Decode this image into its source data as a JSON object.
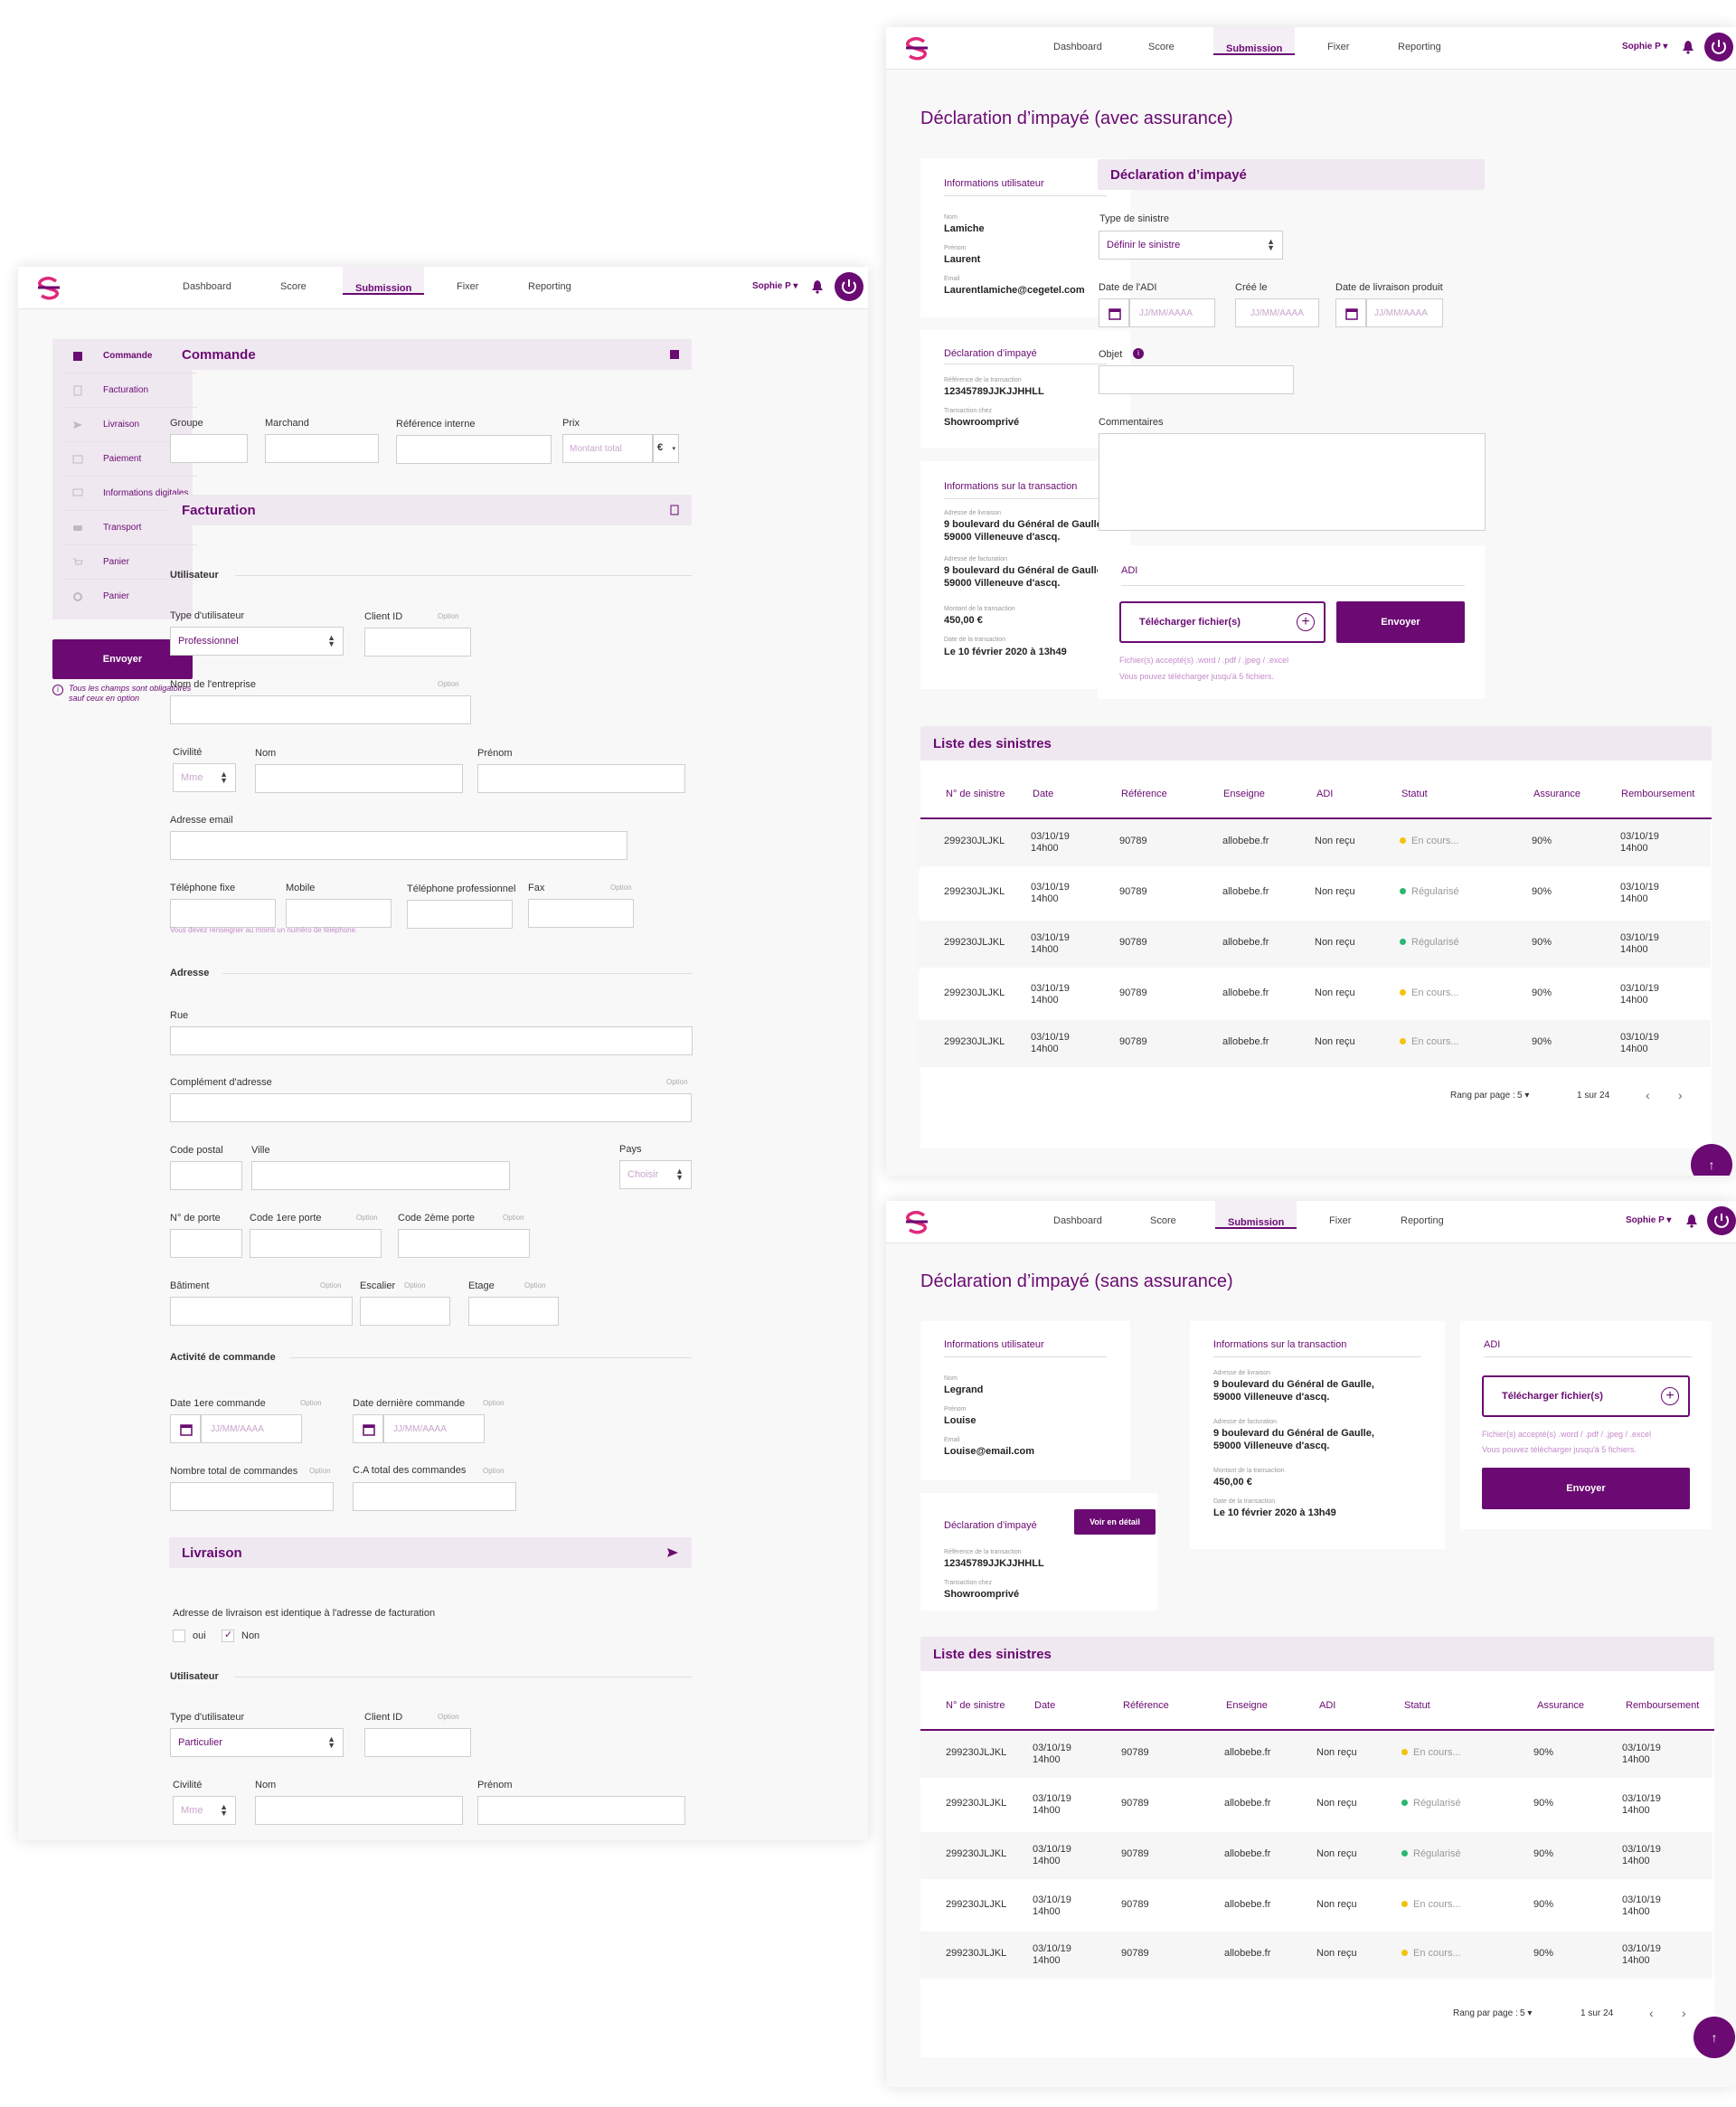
{
  "nav": {
    "links": [
      "Dashboard",
      "Score",
      "Submission",
      "Fixer",
      "Reporting"
    ],
    "user": "Sophie P"
  },
  "left": {
    "sidebar": {
      "items": [
        "Commande",
        "Facturation",
        "Livraison",
        "Paiement",
        "Informations digitales",
        "Transport",
        "Panier",
        "Panier"
      ],
      "send": "Envoyer",
      "note": "Tous les champs sont obligatoires sauf ceux en option"
    },
    "commande": {
      "title": "Commande",
      "groupe": "Groupe",
      "marchand": "Marchand",
      "reference": "Référence interne",
      "prix": "Prix",
      "montant_ph": "Montant total",
      "currency": "€"
    },
    "facturation": {
      "title": "Facturation",
      "utilisateur": "Utilisateur",
      "type_user": "Type d'utilisateur",
      "type_user_value": "Professionnel",
      "client_id": "Client ID",
      "option": "Option",
      "entreprise": "Nom de l'entreprise",
      "civilite": "Civilité",
      "civilite_value": "Mme",
      "nom": "Nom",
      "prenom": "Prénom",
      "email": "Adresse email",
      "tel_fixe": "Téléphone fixe",
      "mobile": "Mobile",
      "tel_pro": "Téléphone professionnel",
      "fax": "Fax",
      "tel_hint": "Vous devez renseigner au moins un numéro de téléphone.",
      "adresse": "Adresse",
      "rue": "Rue",
      "complement": "Complément d'adresse",
      "cp": "Code postal",
      "ville": "Ville",
      "pays": "Pays",
      "pays_ph": "Choisir",
      "porte": "N° de porte",
      "code1": "Code 1ere porte",
      "code2": "Code 2ème  porte",
      "batiment": "Bâtiment",
      "escalier": "Escalier",
      "etage": "Etage",
      "activite": "Activité de commande",
      "date1": "Date 1ere commande",
      "date2": "Date dernière commande",
      "date_ph": "JJ/MM/AAAA",
      "nb_cmd": "Nombre total de commandes",
      "ca": "C.A total des commandes"
    },
    "livraison": {
      "title": "Livraison",
      "question": "Adresse de livraison est identique à l'adresse de facturation",
      "oui": "oui",
      "non": "Non",
      "utilisateur": "Utilisateur",
      "type_user": "Type d'utilisateur",
      "type_user_value": "Particulier",
      "client_id": "Client ID",
      "civilite": "Civilité",
      "civilite_value": "Mme",
      "nom": "Nom",
      "prenom": "Prénom"
    }
  },
  "top": {
    "title": "Déclaration d’impayé (avec assurance)",
    "user_card": {
      "title": "Informations utilisateur",
      "nom_l": "Nom",
      "nom": "Lamiche",
      "prenom_l": "Prénom",
      "prenom": "Laurent",
      "email_l": "Email",
      "email": "Laurentlamiche@cegetel.com"
    },
    "decl_card": {
      "title": "Déclaration d’impayé",
      "ref_l": "Référence de la transaction",
      "ref": "12345789JJKJJHHLL",
      "trans_l": "Transaction chez",
      "trans": "Showroomprivé"
    },
    "trans_card": {
      "title": "Informations sur la transaction",
      "liv_l": "Adresse de livraison",
      "liv1": "9 boulevard du Général de Gaulle,",
      "liv2": "59000 Villeneuve d'ascq.",
      "fac_l": "Adresse de facturation",
      "fac1": "9 boulevard du Général de Gaulle,",
      "fac2": "59000 Villeneuve d'ascq.",
      "mont_l": "Montant de la transaction",
      "mont": "450,00 €",
      "date_l": "Date de la transaction",
      "date": "Le 10 février 2020 à 13h49"
    },
    "form": {
      "title": "Déclaration d’impayé",
      "type_l": "Type de sinistre",
      "type_v": "Définir le sinistre",
      "date_adi": "Date de l'ADI",
      "cree": "Créé le",
      "date_liv": "Date de livraison produit",
      "date_ph": "JJ/MM/AAAA",
      "objet": "Objet",
      "comment": "Commentaires"
    },
    "adi": {
      "title": "ADI",
      "upload": "Télécharger fichier(s)",
      "send": "Envoyer",
      "hint1": "Fichier(s) accepté(s) .word / .pdf / .jpeg / .excel",
      "hint2": "Vous pouvez télécharger jusqu'à 5 fichiers."
    }
  },
  "bottom": {
    "title": "Déclaration d’impayé (sans assurance)",
    "user_card": {
      "title": "Informations utilisateur",
      "nom_l": "Nom",
      "nom": "Legrand",
      "prenom_l": "Prénom",
      "prenom": "Louise",
      "email_l": "Email",
      "email": "Louise@email.com"
    },
    "decl_card": {
      "title": "Déclaration d’impayé",
      "btn": "Voir en détail",
      "ref_l": "Référence de la transaction",
      "ref": "12345789JJKJJHHLL",
      "trans_l": "Transaction chez",
      "trans": "Showroomprivé"
    },
    "trans_card": {
      "title": "Informations sur la transaction",
      "liv_l": "Adresse de livraison",
      "liv1": "9 boulevard du Général de Gaulle,",
      "liv2": "59000 Villeneuve d'ascq.",
      "fac_l": "Adresse de facturation",
      "fac1": "9 boulevard du Général de Gaulle,",
      "fac2": "59000 Villeneuve d'ascq.",
      "mont_l": "Montant de la transaction",
      "mont": "450,00 €",
      "date_l": "Date de la transaction",
      "date": "Le 10 février 2020 à 13h49"
    },
    "adi": {
      "title": "ADI",
      "upload": "Télécharger fichier(s)",
      "send": "Envoyer",
      "hint1": "Fichier(s) accepté(s) .word / .pdf / .jpeg / .excel",
      "hint2": "Vous pouvez télécharger jusqu'à 5 fichiers."
    }
  },
  "table": {
    "title": "Liste des sinistres",
    "headers": [
      "N° de sinistre",
      "Date",
      "Référence",
      "Enseigne",
      "ADI",
      "Statut",
      "Assurance",
      "Remboursement"
    ],
    "rows": [
      {
        "num": "299230JLJKL",
        "date1": "03/10/19",
        "date2": "14h00",
        "ref": "90789",
        "ens": "allobebe.fr",
        "adi": "Non reçu",
        "statut": "En cours...",
        "statut_color": "#f4c20d",
        "ass": "90%",
        "remb1": "03/10/19",
        "remb2": "14h00"
      },
      {
        "num": "299230JLJKL",
        "date1": "03/10/19",
        "date2": "14h00",
        "ref": "90789",
        "ens": "allobebe.fr",
        "adi": "Non reçu",
        "statut": "Régularisé",
        "statut_color": "#2bb673",
        "ass": "90%",
        "remb1": "03/10/19",
        "remb2": "14h00"
      },
      {
        "num": "299230JLJKL",
        "date1": "03/10/19",
        "date2": "14h00",
        "ref": "90789",
        "ens": "allobebe.fr",
        "adi": "Non reçu",
        "statut": "Régularisé",
        "statut_color": "#2bb673",
        "ass": "90%",
        "remb1": "03/10/19",
        "remb2": "14h00"
      },
      {
        "num": "299230JLJKL",
        "date1": "03/10/19",
        "date2": "14h00",
        "ref": "90789",
        "ens": "allobebe.fr",
        "adi": "Non reçu",
        "statut": "En cours...",
        "statut_color": "#f4c20d",
        "ass": "90%",
        "remb1": "03/10/19",
        "remb2": "14h00"
      },
      {
        "num": "299230JLJKL",
        "date1": "03/10/19",
        "date2": "14h00",
        "ref": "90789",
        "ens": "allobebe.fr",
        "adi": "Non reçu",
        "statut": "En cours...",
        "statut_color": "#f4c20d",
        "ass": "90%",
        "remb1": "03/10/19",
        "remb2": "14h00"
      }
    ],
    "per_page_label": "Rang par page :",
    "per_page": "5",
    "page_info": "1 sur 24"
  },
  "colors": {
    "brand": "#6a0a72",
    "brand_light": "#efe8f0",
    "accent": "#e0287c"
  }
}
